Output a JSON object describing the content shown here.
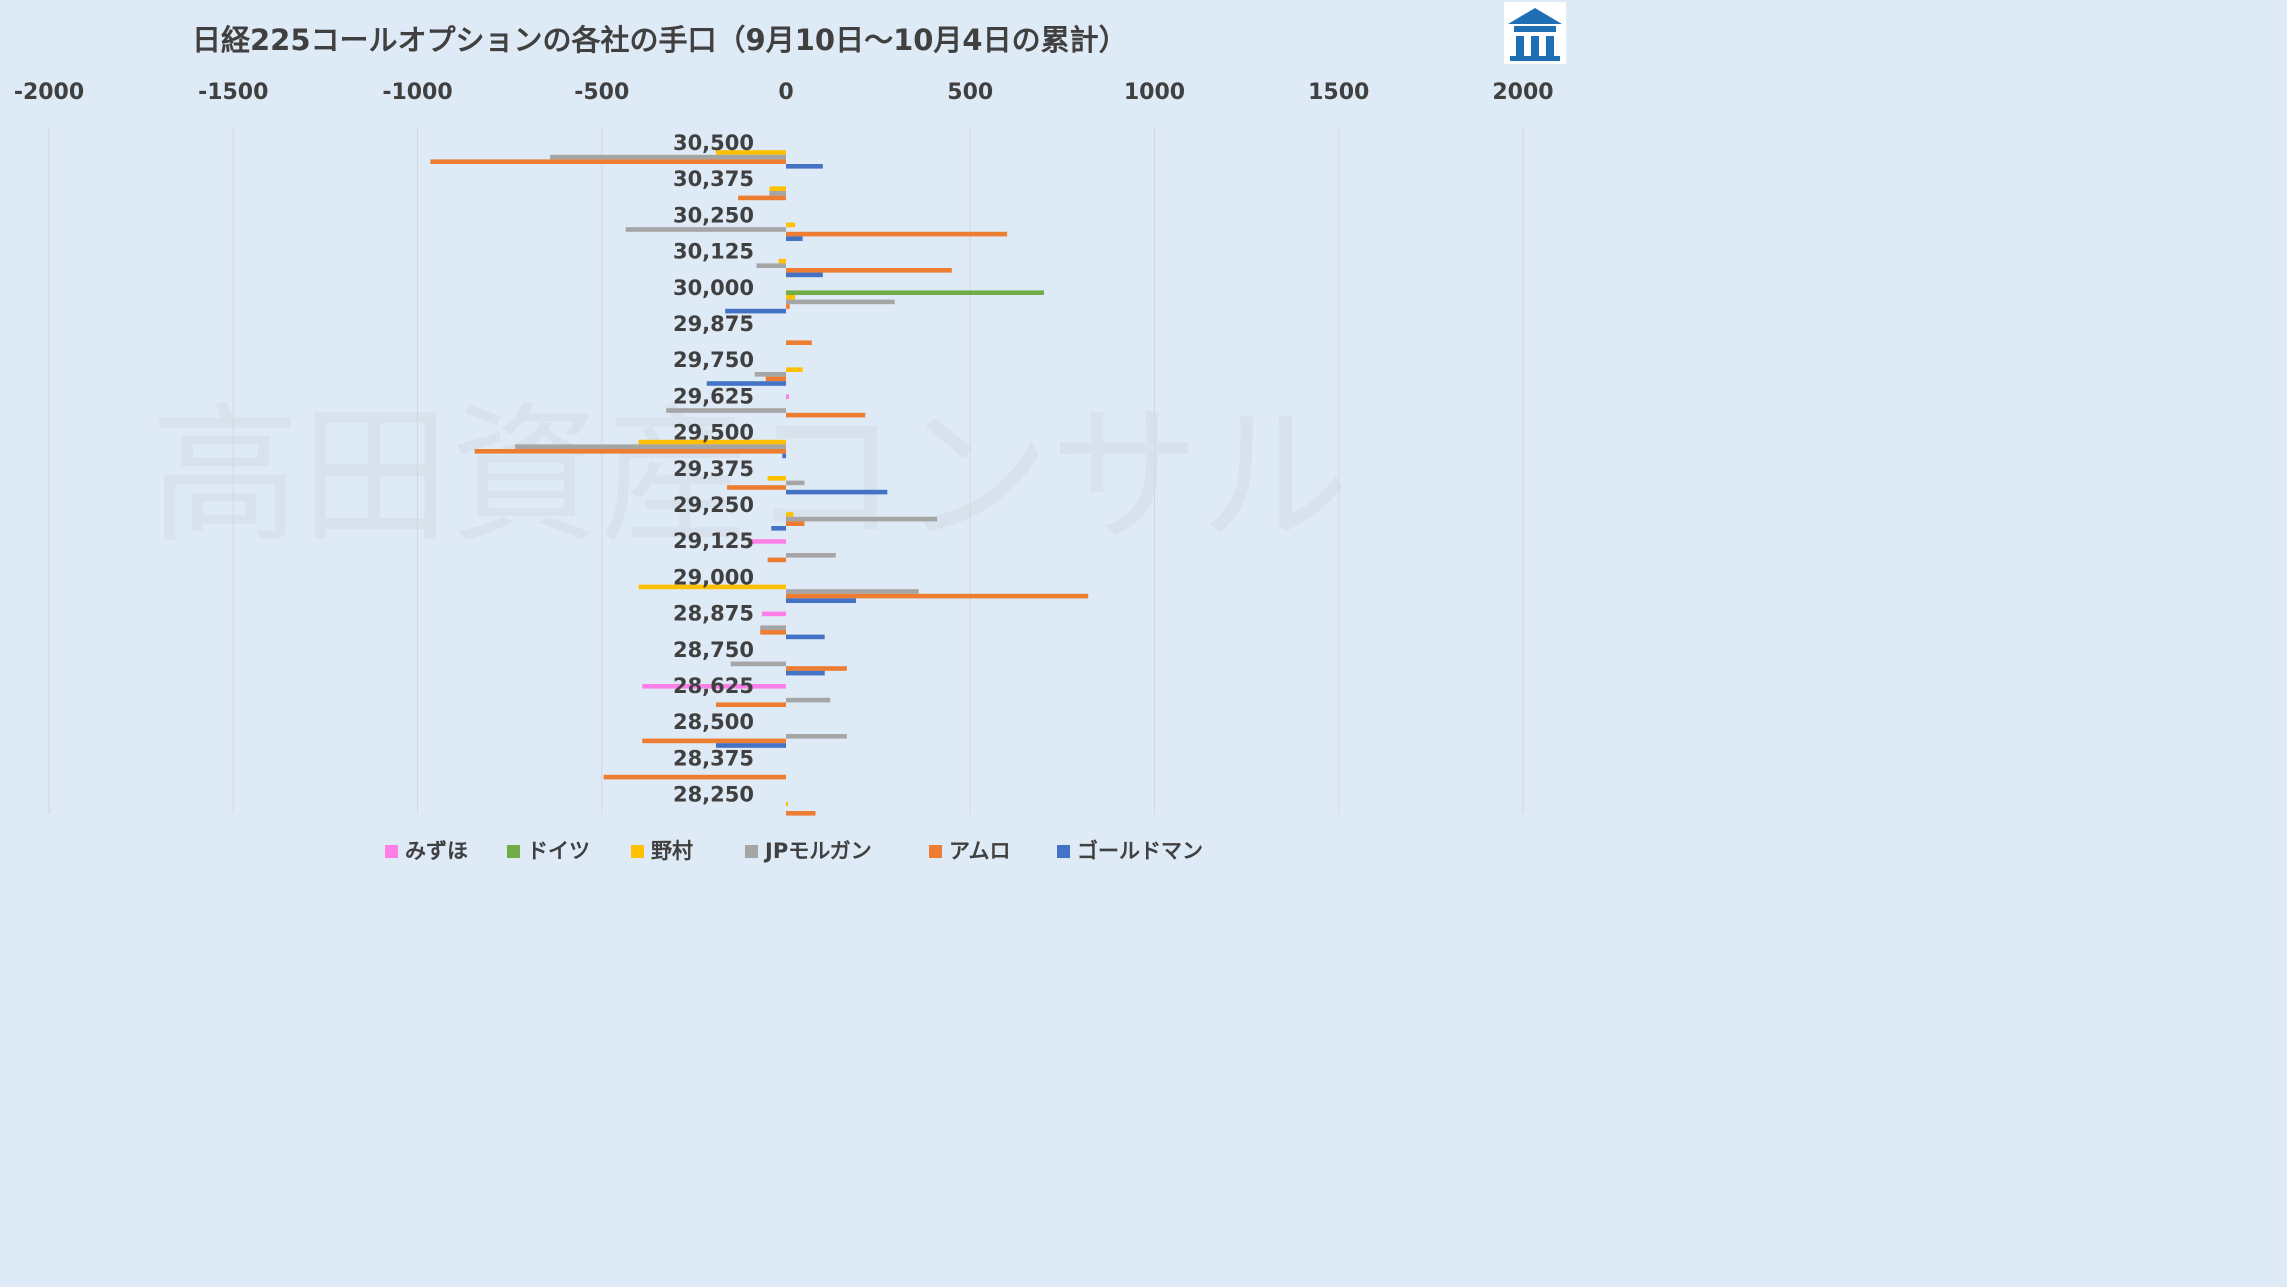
{
  "watermark": "高田資産コンサル",
  "logo": "logo-icon",
  "chart_data": {
    "type": "bar",
    "orientation": "horizontal",
    "title": "日経225コールオプションの各社の手口（9月10日～10月4日の累計）",
    "xlim": [
      -2000,
      2000
    ],
    "xticks": [
      -2000,
      -1500,
      -1000,
      -500,
      0,
      500,
      1000,
      1500,
      2000
    ],
    "xaxis_position": "top",
    "grid": true,
    "legend_position": "bottom",
    "categories": [
      "30,500",
      "30,375",
      "30,250",
      "30,125",
      "30,000",
      "29,875",
      "29,750",
      "29,625",
      "29,500",
      "29,375",
      "29,250",
      "29,125",
      "29,000",
      "28,875",
      "28,750",
      "28,625",
      "28,500",
      "28,375",
      "28,250"
    ],
    "series": [
      {
        "name": "みずほ",
        "color": "#ff7fe8",
        "values": [
          0,
          0,
          0,
          0,
          0,
          0,
          0,
          8,
          0,
          0,
          0,
          -95,
          0,
          -65,
          0,
          -390,
          0,
          0,
          0
        ]
      },
      {
        "name": "ドイツ",
        "color": "#70ad47",
        "values": [
          0,
          0,
          0,
          0,
          700,
          0,
          0,
          0,
          0,
          0,
          0,
          0,
          0,
          0,
          0,
          0,
          0,
          0,
          0
        ]
      },
      {
        "name": "野村",
        "color": "#ffc000",
        "values": [
          -190,
          -45,
          25,
          -20,
          25,
          0,
          45,
          0,
          -400,
          -50,
          20,
          0,
          -400,
          0,
          0,
          0,
          0,
          0,
          5
        ]
      },
      {
        "name": "JPモルガン",
        "color": "#a5a5a5",
        "values": [
          -640,
          -45,
          -435,
          -80,
          295,
          0,
          -85,
          -325,
          -735,
          50,
          410,
          135,
          360,
          -70,
          -150,
          120,
          165,
          0,
          0
        ]
      },
      {
        "name": "アムロ",
        "color": "#ed7d31",
        "values": [
          -965,
          -130,
          600,
          450,
          10,
          70,
          -55,
          215,
          -845,
          -160,
          50,
          -50,
          820,
          -70,
          165,
          -190,
          -390,
          -495,
          80
        ]
      },
      {
        "name": "ゴールドマン",
        "color": "#4472c4",
        "values": [
          100,
          0,
          45,
          100,
          -165,
          0,
          -215,
          0,
          -10,
          275,
          -40,
          0,
          190,
          105,
          105,
          0,
          -190,
          0,
          0
        ]
      }
    ]
  }
}
